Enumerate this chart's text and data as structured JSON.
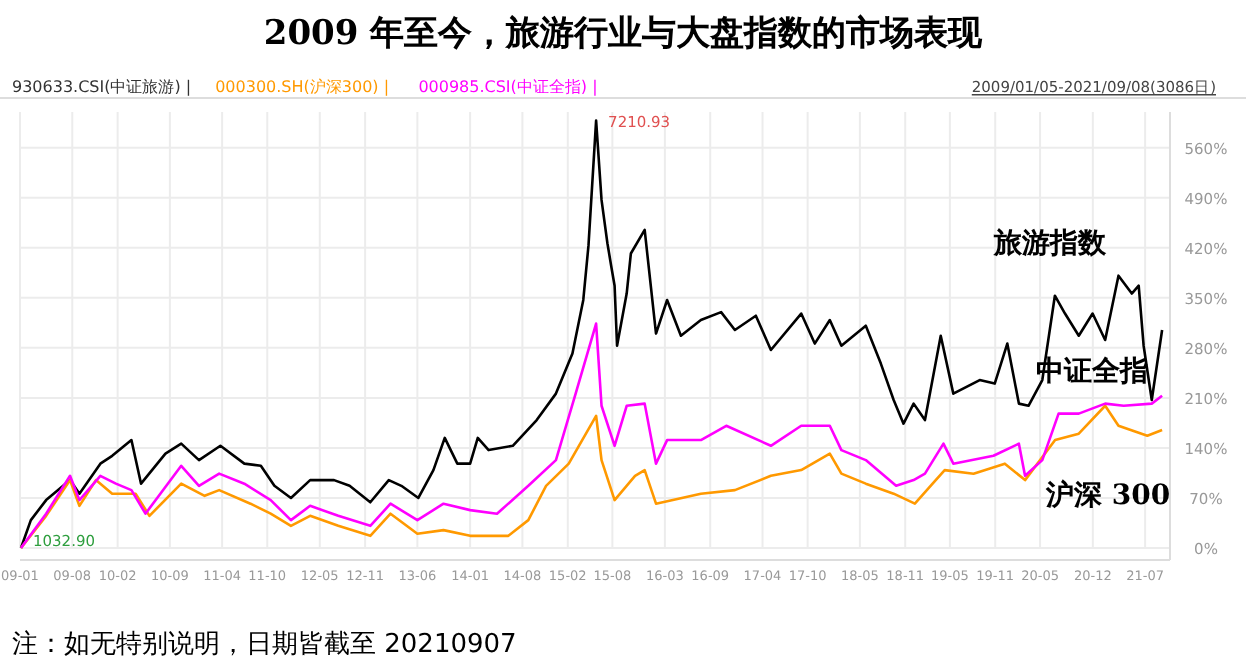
{
  "chart_data": {
    "type": "line",
    "title": "2009 年至今，旅游行业与大盘指数的市场表现",
    "xlim": [
      "2009-01-01",
      "2021-10-10"
    ],
    "ylim": [
      0,
      610
    ],
    "xticks": [
      {
        "value": "2009-01",
        "label": "09-01"
      },
      {
        "value": "2009-08",
        "label": "09-08"
      },
      {
        "value": "2010-02",
        "label": "10-02"
      },
      {
        "value": "2010-09",
        "label": "10-09"
      },
      {
        "value": "2011-04",
        "label": "11-04"
      },
      {
        "value": "2011-10",
        "label": "11-10"
      },
      {
        "value": "2012-05",
        "label": "12-05"
      },
      {
        "value": "2012-11",
        "label": "12-11"
      },
      {
        "value": "2013-06",
        "label": "13-06"
      },
      {
        "value": "2014-01",
        "label": "14-01"
      },
      {
        "value": "2014-08",
        "label": "14-08"
      },
      {
        "value": "2015-02",
        "label": "15-02"
      },
      {
        "value": "2015-08",
        "label": "15-08"
      },
      {
        "value": "2016-03",
        "label": "16-03"
      },
      {
        "value": "2016-09",
        "label": "16-09"
      },
      {
        "value": "2017-04",
        "label": "17-04"
      },
      {
        "value": "2017-10",
        "label": "17-10"
      },
      {
        "value": "2018-05",
        "label": "18-05"
      },
      {
        "value": "2018-11",
        "label": "18-11"
      },
      {
        "value": "2019-05",
        "label": "19-05"
      },
      {
        "value": "2019-11",
        "label": "19-11"
      },
      {
        "value": "2020-05",
        "label": "20-05"
      },
      {
        "value": "2020-12",
        "label": "20-12"
      },
      {
        "value": "2021-07",
        "label": "21-07"
      }
    ],
    "yticks": [
      {
        "value": 0,
        "label": "0%"
      },
      {
        "value": 70,
        "label": "70%"
      },
      {
        "value": 140,
        "label": "140%"
      },
      {
        "value": 210,
        "label": "210%"
      },
      {
        "value": 280,
        "label": "280%"
      },
      {
        "value": 350,
        "label": "350%"
      },
      {
        "value": 420,
        "label": "420%"
      },
      {
        "value": 490,
        "label": "490%"
      },
      {
        "value": 560,
        "label": "560%"
      }
    ],
    "grid": true,
    "marker": "none",
    "line_style": "solid",
    "series": [
      {
        "name": "旅游指数",
        "color": "#000000",
        "x": [
          "2009-01-05",
          "2009-02-14",
          "2009-04-17",
          "2009-07-23",
          "2009-08-30",
          "2009-11-23",
          "2010-01-10",
          "2010-03-29",
          "2010-05-07",
          "2010-08-14",
          "2010-10-17",
          "2010-12-28",
          "2011-03-25",
          "2011-06-30",
          "2011-09-05",
          "2011-10-30",
          "2012-01-05",
          "2012-03-23",
          "2012-06-28",
          "2012-08-30",
          "2012-11-22",
          "2013-02-05",
          "2013-03-28",
          "2013-06-05",
          "2013-08-05",
          "2013-09-20",
          "2013-11-10",
          "2014-01-01",
          "2014-02-01",
          "2014-03-17",
          "2014-06-23",
          "2014-09-28",
          "2014-12-15",
          "2015-02-20",
          "2015-04-05",
          "2015-04-26",
          "2015-05-27",
          "2015-06-18",
          "2015-07-12",
          "2015-07-27",
          "2015-08-10",
          "2015-08-20",
          "2015-09-28",
          "2015-10-15",
          "2015-12-10",
          "2016-01-25",
          "2016-03-10",
          "2016-05-05",
          "2016-07-25",
          "2016-10-15",
          "2016-12-10",
          "2017-03-05",
          "2017-05-05",
          "2017-09-05",
          "2017-10-30",
          "2017-12-30",
          "2018-02-15",
          "2018-05-25",
          "2018-07-25",
          "2018-09-15",
          "2018-10-25",
          "2018-12-05",
          "2019-01-20",
          "2019-03-25",
          "2019-05-15",
          "2019-08-30",
          "2019-10-30",
          "2019-12-20",
          "2020-02-05",
          "2020-03-15",
          "2020-05-10",
          "2020-06-30",
          "2020-08-10",
          "2020-10-05",
          "2020-11-30",
          "2021-01-20",
          "2021-03-15",
          "2021-05-08",
          "2021-06-05",
          "2021-06-25",
          "2021-07-28",
          "2021-09-08"
        ],
        "values": [
          0,
          39,
          67,
          95,
          76,
          118,
          129,
          151,
          90,
          132,
          146,
          123,
          143,
          118,
          115,
          87,
          70,
          95,
          95,
          87,
          64,
          95,
          87,
          70,
          109,
          154,
          118,
          118,
          154,
          137,
          143,
          179,
          216,
          272,
          347,
          423,
          598,
          487,
          426,
          395,
          367,
          283,
          356,
          412,
          445,
          300,
          347,
          297,
          319,
          330,
          305,
          325,
          277,
          328,
          286,
          319,
          283,
          311,
          258,
          207,
          174,
          202,
          179,
          297,
          216,
          235,
          230,
          286,
          202,
          199,
          235,
          353,
          328,
          297,
          328,
          291,
          381,
          356,
          367,
          283,
          207,
          305
        ]
      },
      {
        "name": "沪深 300",
        "color": "#ff9900",
        "x": [
          "2009-01-05",
          "2009-04-17",
          "2009-07-23",
          "2009-08-30",
          "2009-11-05",
          "2010-01-10",
          "2010-04-15",
          "2010-06-10",
          "2010-10-17",
          "2011-01-20",
          "2011-03-20",
          "2011-07-25",
          "2011-10-15",
          "2012-01-05",
          "2012-03-23",
          "2012-07-15",
          "2012-11-22",
          "2013-02-12",
          "2013-06-01",
          "2013-09-15",
          "2014-01-01",
          "2014-06-05",
          "2014-08-25",
          "2014-11-05",
          "2015-02-05",
          "2015-05-27",
          "2015-06-18",
          "2015-08-10",
          "2015-11-01",
          "2015-12-10",
          "2016-01-25",
          "2016-07-25",
          "2016-12-10",
          "2017-05-05",
          "2017-09-05",
          "2017-12-30",
          "2018-02-15",
          "2018-05-25",
          "2018-09-15",
          "2018-12-10",
          "2019-02-20",
          "2019-04-10",
          "2019-08-05",
          "2019-12-10",
          "2020-03-01",
          "2020-07-01",
          "2020-10-05",
          "2021-01-20",
          "2021-03-15",
          "2021-07-10",
          "2021-09-08"
        ],
        "values": [
          0,
          45,
          95,
          59,
          95,
          76,
          76,
          45,
          90,
          73,
          81,
          62,
          48,
          31,
          45,
          31,
          17,
          48,
          20,
          25,
          17,
          17,
          39,
          87,
          118,
          185,
          123,
          67,
          101,
          109,
          62,
          76,
          81,
          101,
          109,
          132,
          104,
          90,
          76,
          62,
          90,
          109,
          104,
          118,
          95,
          151,
          160,
          199,
          171,
          157,
          165
        ]
      },
      {
        "name": "中证全指",
        "color": "#ff00ff",
        "x": [
          "2009-01-05",
          "2009-04-17",
          "2009-07-23",
          "2009-08-30",
          "2009-11-23",
          "2010-01-25",
          "2010-03-29",
          "2010-05-25",
          "2010-10-17",
          "2010-12-28",
          "2011-03-20",
          "2011-06-30",
          "2011-10-15",
          "2012-01-05",
          "2012-03-23",
          "2012-07-15",
          "2012-11-22",
          "2013-02-12",
          "2013-06-01",
          "2013-09-15",
          "2014-01-01",
          "2014-04-20",
          "2014-08-25",
          "2014-12-15",
          "2015-03-05",
          "2015-05-27",
          "2015-06-18",
          "2015-08-10",
          "2015-09-28",
          "2015-12-10",
          "2016-01-25",
          "2016-03-10",
          "2016-07-25",
          "2016-11-05",
          "2017-05-05",
          "2017-09-05",
          "2017-12-30",
          "2018-02-15",
          "2018-05-25",
          "2018-09-25",
          "2018-12-05",
          "2019-01-20",
          "2019-04-05",
          "2019-05-15",
          "2019-10-25",
          "2020-02-05",
          "2020-03-01",
          "2020-05-10",
          "2020-07-15",
          "2020-10-05",
          "2021-01-20",
          "2021-04-05",
          "2021-07-28",
          "2021-09-08"
        ],
        "values": [
          0,
          48,
          101,
          67,
          101,
          90,
          81,
          48,
          115,
          87,
          104,
          90,
          67,
          39,
          59,
          45,
          31,
          62,
          39,
          62,
          53,
          48,
          87,
          123,
          216,
          314,
          199,
          143,
          199,
          202,
          118,
          151,
          151,
          171,
          143,
          171,
          171,
          137,
          123,
          87,
          95,
          104,
          146,
          118,
          129,
          146,
          101,
          123,
          188,
          188,
          202,
          199,
          202,
          213
        ]
      }
    ],
    "annotations": [
      "930633.CSI(中证旅游) |",
      "000300.SH(沪深300) |",
      "000985.CSI(中证全指) |",
      "2009/01/05-2021/09/08(3086日)",
      {
        "text": "1032.90",
        "x": "2009-01-05",
        "y": 0
      },
      {
        "text": "7210.93",
        "x": "2015-05-27",
        "y": 598
      },
      "注：如无特别说明，日期皆截至 20210907"
    ]
  }
}
